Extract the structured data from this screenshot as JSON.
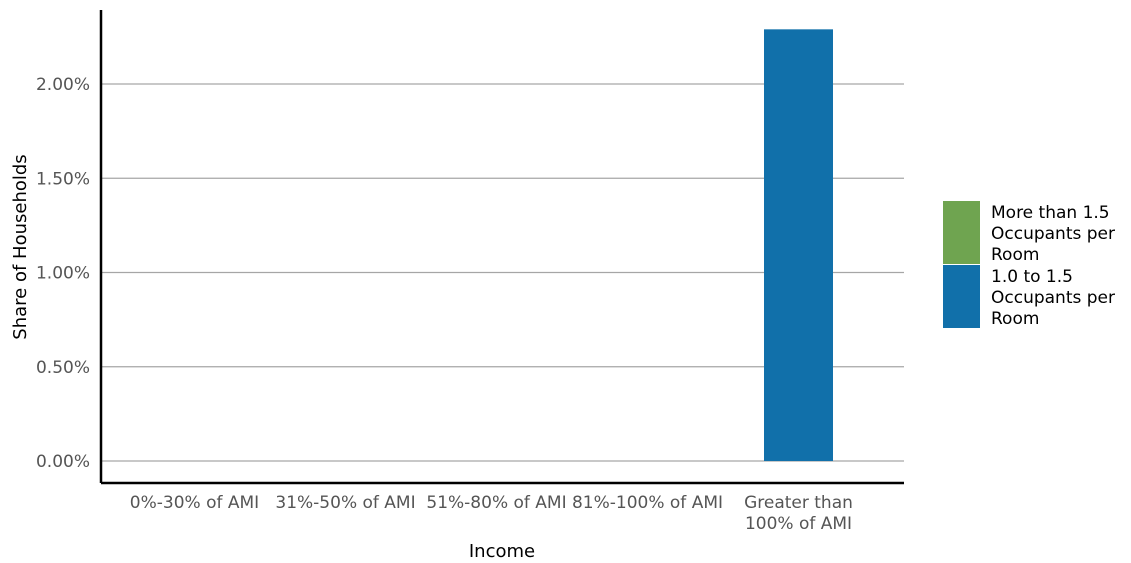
{
  "chart_data": {
    "type": "bar",
    "stacked": true,
    "xlabel": "Income",
    "ylabel": "Share of Households",
    "categories": [
      "0%-30% of AMI",
      "31%-50% of AMI",
      "51%-80% of AMI",
      "81%-100% of AMI",
      "Greater than\n100% of AMI"
    ],
    "series": [
      {
        "name": "1.0 to 1.5 Occupants per Room",
        "color": "#1170aa",
        "values": [
          0,
          0,
          0,
          0,
          2.29
        ]
      },
      {
        "name": "More than 1.5 Occupants per Room",
        "color": "#6fa450",
        "values": [
          0,
          0,
          0,
          0,
          0
        ]
      }
    ],
    "y_ticks": [
      "0.00%",
      "0.50%",
      "1.00%",
      "1.50%",
      "2.00%"
    ],
    "y_tick_values": [
      0,
      0.5,
      1.0,
      1.5,
      2.0
    ],
    "ylim": [
      0,
      2.29
    ],
    "grid": true,
    "legend": {
      "placement": "right",
      "items": [
        {
          "label": "More than 1.5\nOccupants per\nRoom",
          "color": "#6fa450"
        },
        {
          "label": "1.0 to 1.5\nOccupants per\nRoom",
          "color": "#1170aa"
        }
      ]
    }
  }
}
